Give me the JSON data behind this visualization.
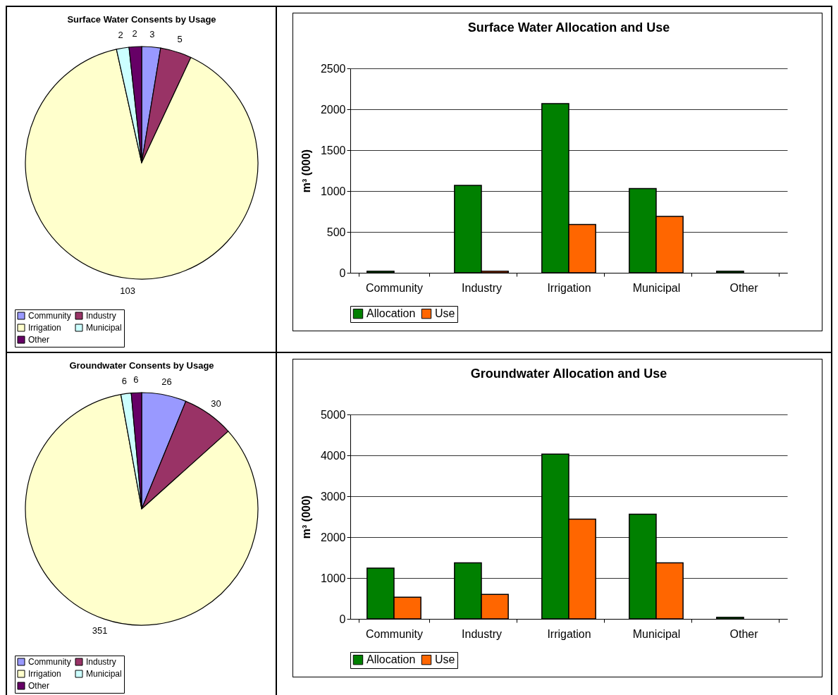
{
  "chart_data": [
    {
      "type": "pie",
      "title": "Surface Water Consents by Usage",
      "categories": [
        "Community",
        "Industry",
        "Irrigation",
        "Municipal",
        "Other"
      ],
      "values": [
        3,
        5,
        103,
        2,
        2
      ],
      "colors": [
        "#9999ff",
        "#993366",
        "#ffffcc",
        "#ccffff",
        "#660066"
      ],
      "data_labels": true,
      "legend": "bottom"
    },
    {
      "type": "bar",
      "title": "Surface Water Allocation and Use",
      "ylabel": "m³ (000)",
      "categories": [
        "Community",
        "Industry",
        "Irrigation",
        "Municipal",
        "Other"
      ],
      "series": [
        {
          "name": "Allocation",
          "color": "#008000",
          "values": [
            20,
            1070,
            2070,
            1030,
            20
          ]
        },
        {
          "name": "Use",
          "color": "#ff6600",
          "values": [
            null,
            20,
            590,
            690,
            null
          ]
        }
      ],
      "ylim": [
        0,
        2500
      ],
      "yticks": [
        0,
        500,
        1000,
        1500,
        2000,
        2500
      ],
      "grid": "y",
      "legend": "bottom"
    },
    {
      "type": "pie",
      "title": "Groundwater Consents by Usage",
      "categories": [
        "Community",
        "Industry",
        "Irrigation",
        "Municipal",
        "Other"
      ],
      "values": [
        26,
        30,
        351,
        6,
        6
      ],
      "colors": [
        "#9999ff",
        "#993366",
        "#ffffcc",
        "#ccffff",
        "#660066"
      ],
      "data_labels": true,
      "legend": "bottom"
    },
    {
      "type": "bar",
      "title": "Groundwater Allocation and Use",
      "ylabel": "m³ (000)",
      "categories": [
        "Community",
        "Industry",
        "Irrigation",
        "Municipal",
        "Other"
      ],
      "series": [
        {
          "name": "Allocation",
          "color": "#008000",
          "values": [
            1240,
            1370,
            4030,
            2560,
            40
          ]
        },
        {
          "name": "Use",
          "color": "#ff6600",
          "values": [
            530,
            600,
            2440,
            1370,
            null
          ]
        }
      ],
      "ylim": [
        0,
        5000
      ],
      "yticks": [
        0,
        1000,
        2000,
        3000,
        4000,
        5000
      ],
      "grid": "y",
      "legend": "bottom"
    }
  ]
}
